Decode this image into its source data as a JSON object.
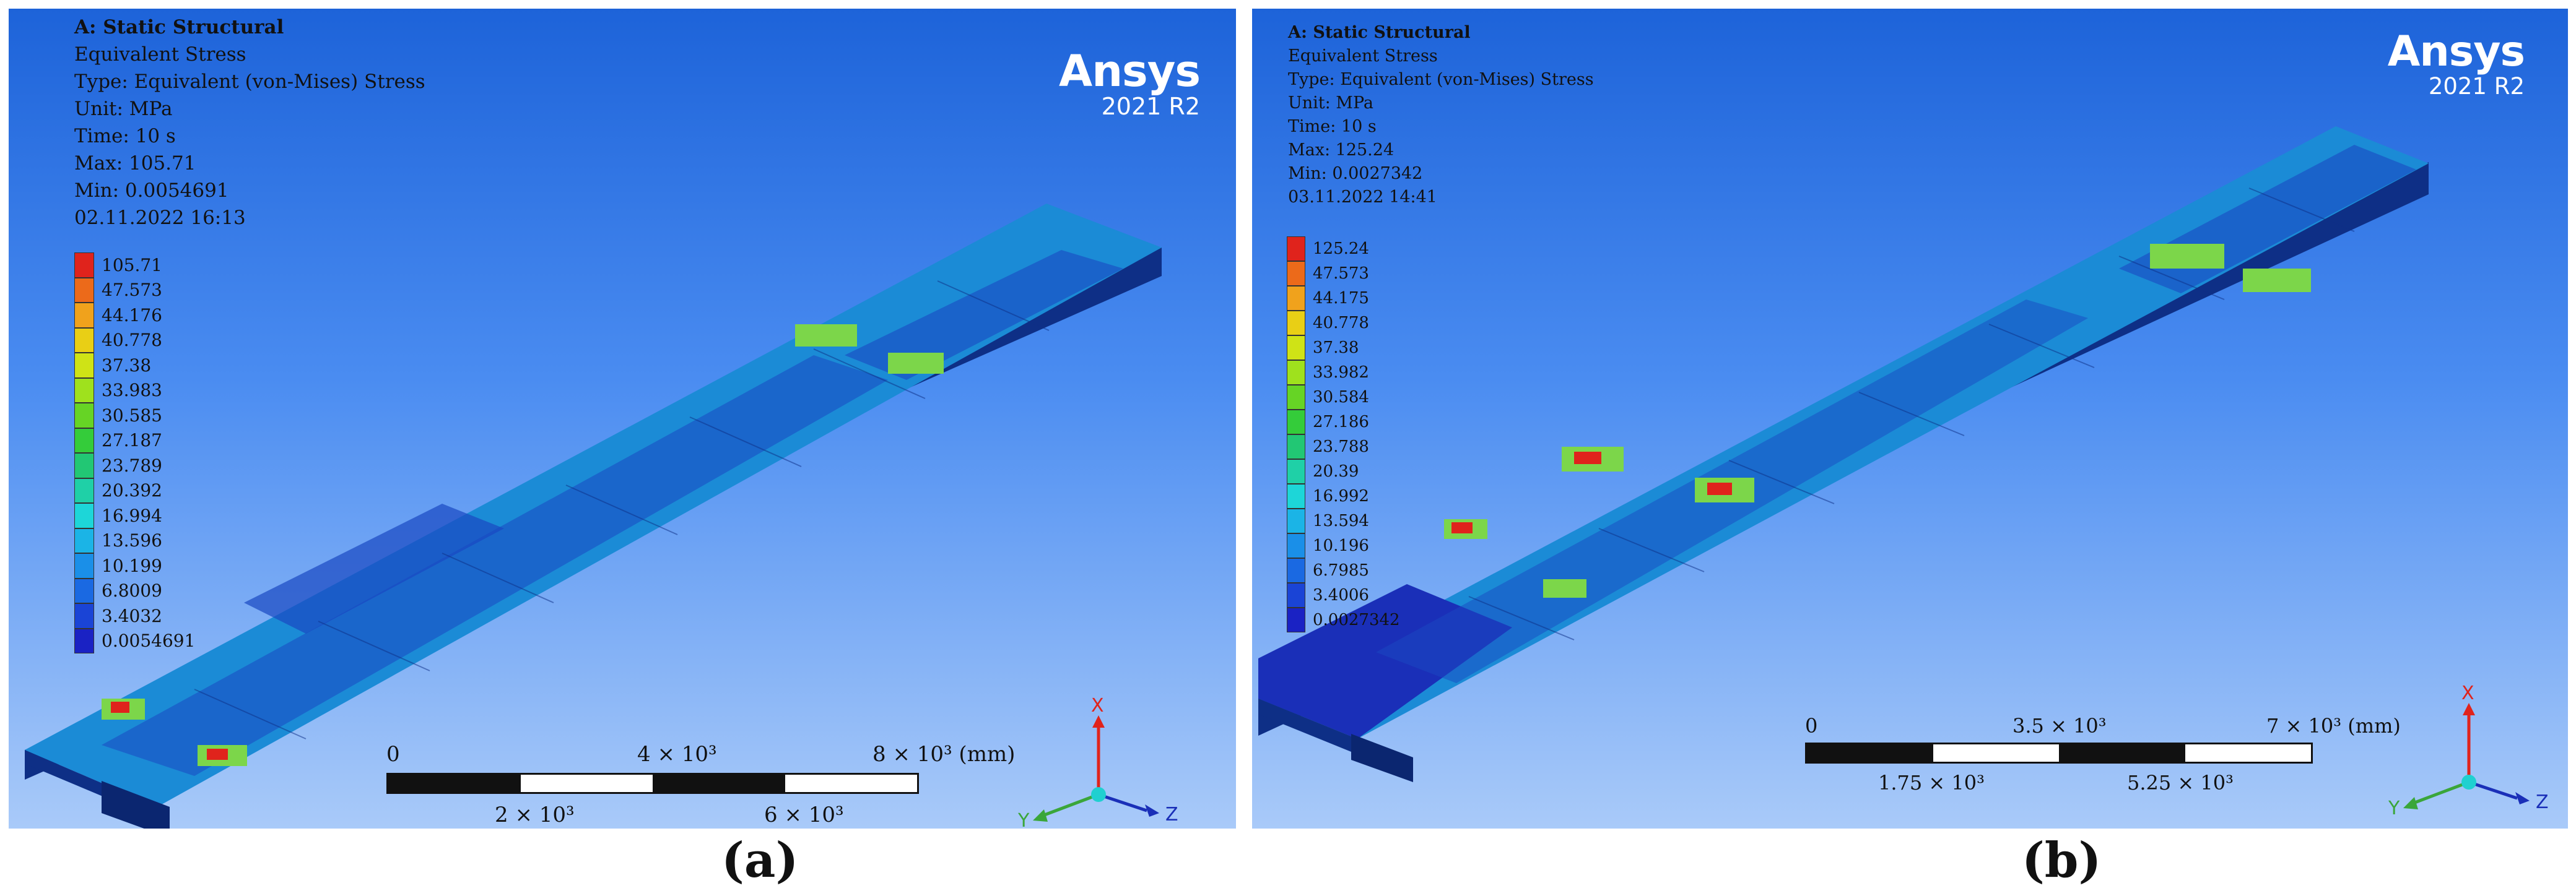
{
  "panel_a": {
    "info": {
      "title": "A: Static Structural",
      "result": "Equivalent Stress",
      "type": "Type: Equivalent (von-Mises) Stress",
      "unit": "Unit: MPa",
      "time": "Time: 10 s",
      "max": "Max: 105.71",
      "min": "Min: 0.0054691",
      "date": "02.11.2022 16:13"
    },
    "legend": [
      "105.71",
      "47.573",
      "44.176",
      "40.778",
      "37.38",
      "33.983",
      "30.585",
      "27.187",
      "23.789",
      "20.392",
      "16.994",
      "13.596",
      "10.199",
      "6.8009",
      "3.4032",
      "0.0054691"
    ],
    "brand": {
      "name": "Ansys",
      "version": "2021 R2"
    },
    "scale": {
      "t0": "0",
      "t2": "4 × 10³",
      "t4": "8 × 10³ (mm)",
      "t1": "2 × 10³",
      "t3": "6 × 10³"
    },
    "axes": {
      "x": "X",
      "y": "Y",
      "z": "Z"
    },
    "caption": "(a)"
  },
  "panel_b": {
    "info": {
      "title": "A: Static Structural",
      "result": "Equivalent Stress",
      "type": "Type: Equivalent (von-Mises) Stress",
      "unit": "Unit: MPa",
      "time": "Time: 10 s",
      "max": "Max: 125.24",
      "min": "Min: 0.0027342",
      "date": "03.11.2022 14:41"
    },
    "legend": [
      "125.24",
      "47.573",
      "44.175",
      "40.778",
      "37.38",
      "33.982",
      "30.584",
      "27.186",
      "23.788",
      "20.39",
      "16.992",
      "13.594",
      "10.196",
      "6.7985",
      "3.4006",
      "0.0027342"
    ],
    "brand": {
      "name": "Ansys",
      "version": "2021 R2"
    },
    "scale": {
      "t0": "0",
      "t2": "3.5 × 10³",
      "t4": "7 × 10³ (mm)",
      "t1": "1.75 × 10³",
      "t3": "5.25 × 10³"
    },
    "axes": {
      "x": "X",
      "y": "Y",
      "z": "Z"
    },
    "caption": "(b)"
  },
  "legend_colors": [
    "#e0231c",
    "#ec6a1a",
    "#f0a21c",
    "#e9cf15",
    "#cfe316",
    "#9fe11d",
    "#66d425",
    "#34cc3a",
    "#22c774",
    "#1fd0a7",
    "#1dd6d8",
    "#1bb4e6",
    "#1a8fe8",
    "#1a69e2",
    "#1a44d6",
    "#1a22c4"
  ],
  "model_colors": {
    "deck": "#1b8bd6",
    "deck_dark": "#1a49c2",
    "edge": "#0e2f86",
    "hot": "#e0231c",
    "warm": "#7cd64a"
  }
}
